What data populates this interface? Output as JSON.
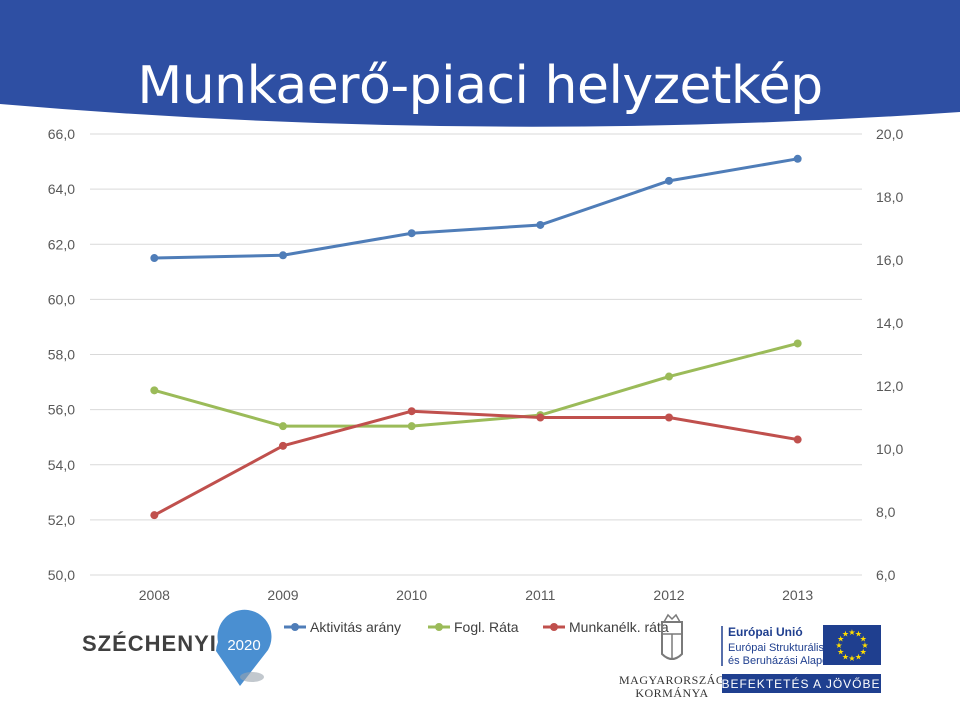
{
  "slide": {
    "title": "Munkaerő-piaci helyzetkép",
    "banner_color": "#2e4fa3"
  },
  "chart_data": {
    "type": "line",
    "title": "",
    "categories": [
      "2008",
      "2009",
      "2010",
      "2011",
      "2012",
      "2013"
    ],
    "y_left": {
      "min": 50,
      "max": 66,
      "step": 2,
      "tick_labels": [
        "50,0",
        "52,0",
        "54,0",
        "56,0",
        "58,0",
        "60,0",
        "62,0",
        "64,0",
        "66,0"
      ]
    },
    "y_right": {
      "min": 6,
      "max": 20,
      "step": 2,
      "tick_labels": [
        "6,0",
        "8,0",
        "10,0",
        "12,0",
        "14,0",
        "16,0",
        "18,0",
        "20,0"
      ]
    },
    "grid": true,
    "legend_position": "bottom",
    "series": [
      {
        "name": "Aktivitás arány",
        "axis": "left",
        "color": "#4f7db8",
        "values": [
          61.5,
          61.6,
          62.4,
          62.7,
          64.3,
          65.1
        ]
      },
      {
        "name": "Fogl. Ráta",
        "axis": "left",
        "color": "#9bbb59",
        "values": [
          56.7,
          55.4,
          55.4,
          55.8,
          57.2,
          58.4
        ]
      },
      {
        "name": "Munkanélk. ráta",
        "axis": "right",
        "color": "#c0504d",
        "values": [
          7.9,
          10.1,
          11.2,
          11.0,
          11.0,
          10.3
        ]
      }
    ]
  },
  "footer": {
    "szechenyi_label": "SZÉCHENYI",
    "szechenyi_year": "2020",
    "gov_line1": "MAGYARORSZÁG",
    "gov_line2": "KORMÁNYA",
    "eu_title": "Európai Unió",
    "eu_line1": "Európai Strukturális",
    "eu_line2": "és Beruházási Alapok",
    "eu_slogan": "BEFEKTETÉS A JÖVŐBE",
    "eu_blue": "#1f3f8f",
    "eu_yellow": "#ffdd00"
  }
}
